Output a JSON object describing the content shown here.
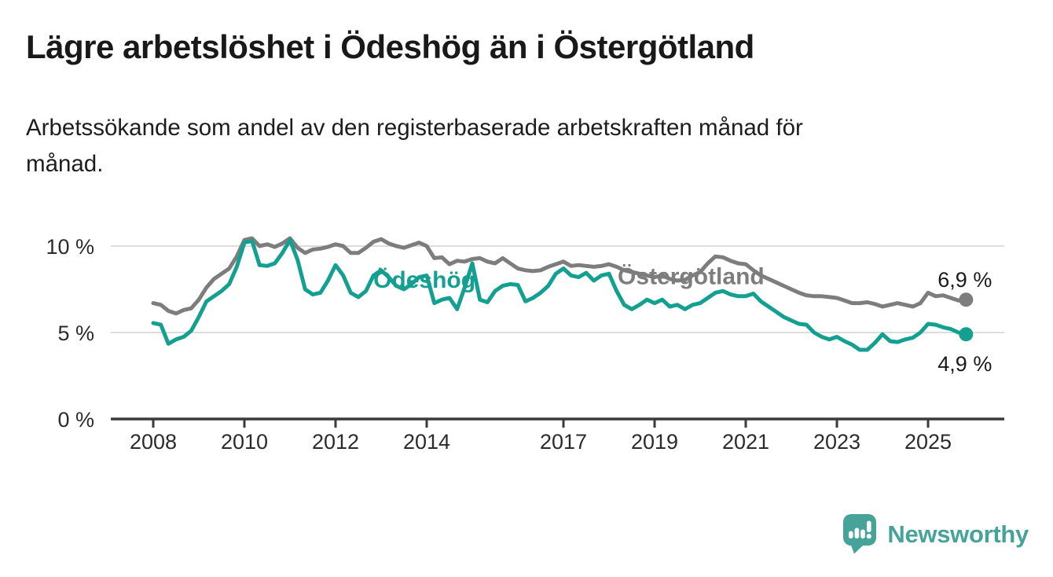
{
  "header": {
    "title": "Lägre arbetslöshet i Ödeshög än i Östergötland",
    "subtitle_line1": "Arbetssökande som andel av den registerbaserade arbetskraften månad för",
    "subtitle_line2": "månad."
  },
  "chart_data": {
    "type": "line",
    "title": "Lägre arbetslöshet i Ödeshög än i Östergötland",
    "subtitle": "Arbetssökande som andel av den registerbaserade arbetskraften månad för månad.",
    "x_unit": "year (monthly data, sampled every 2 months: Jan, Mar, May, Jul, Sep, Nov)",
    "x_range": [
      2008.0,
      2025.83
    ],
    "ylim": [
      0,
      11.6
    ],
    "grid": "horizontal",
    "legend_position": "labels-on-lines",
    "y_axis": {
      "values": [
        0,
        5,
        10
      ],
      "labels": [
        "0 %",
        "5 %",
        "10 %"
      ]
    },
    "x_ticks": [
      2008,
      2010,
      2012,
      2014,
      2017,
      2019,
      2021,
      2023,
      2025
    ],
    "series": [
      {
        "id": "odeshog",
        "name": "Ödeshög",
        "color": "#14a091",
        "end_label": "4,9 %",
        "end_label_side": "below",
        "label_year": 2013.95,
        "label_pct": 8.05,
        "values": [
          5.55,
          5.45,
          4.35,
          4.6,
          4.75,
          5.1,
          5.9,
          6.8,
          7.1,
          7.4,
          7.8,
          8.8,
          10.2,
          10.3,
          8.9,
          8.85,
          9.0,
          9.6,
          10.35,
          9.2,
          7.5,
          7.2,
          7.3,
          8.0,
          8.9,
          8.3,
          7.3,
          7.05,
          7.4,
          8.3,
          8.6,
          8.2,
          7.7,
          7.5,
          7.8,
          8.2,
          8.3,
          6.7,
          6.9,
          7.0,
          6.35,
          7.6,
          9.0,
          6.9,
          6.75,
          7.4,
          7.7,
          7.8,
          7.75,
          6.8,
          7.0,
          7.3,
          7.7,
          8.4,
          8.7,
          8.3,
          8.2,
          8.45,
          8.0,
          8.3,
          8.4,
          7.4,
          6.6,
          6.35,
          6.6,
          6.9,
          6.7,
          6.9,
          6.5,
          6.6,
          6.35,
          6.6,
          6.7,
          7.0,
          7.3,
          7.4,
          7.2,
          7.1,
          7.1,
          7.25,
          6.8,
          6.5,
          6.2,
          5.9,
          5.7,
          5.5,
          5.45,
          5.0,
          4.75,
          4.6,
          4.75,
          4.5,
          4.3,
          4.0,
          4.0,
          4.4,
          4.9,
          4.5,
          4.45,
          4.6,
          4.7,
          5.0,
          5.5,
          5.45,
          5.3,
          5.2,
          5.0,
          4.9
        ]
      },
      {
        "id": "ostergotland",
        "name": "Östergötland",
        "color": "#7d7d7d",
        "end_label": "6,9 %",
        "end_label_side": "above",
        "label_year": 2019.8,
        "label_pct": 8.25,
        "values": [
          6.7,
          6.6,
          6.25,
          6.1,
          6.3,
          6.4,
          6.9,
          7.6,
          8.1,
          8.4,
          8.7,
          9.4,
          10.35,
          10.45,
          10.0,
          10.1,
          9.95,
          10.15,
          10.45,
          9.9,
          9.6,
          9.8,
          9.85,
          9.95,
          10.1,
          10.0,
          9.6,
          9.6,
          9.9,
          10.25,
          10.4,
          10.15,
          10.0,
          9.9,
          10.05,
          10.2,
          10.0,
          9.3,
          9.35,
          8.95,
          9.15,
          9.1,
          9.25,
          9.3,
          9.1,
          9.0,
          9.3,
          9.0,
          8.7,
          8.6,
          8.55,
          8.6,
          8.8,
          8.95,
          9.1,
          8.85,
          8.9,
          8.85,
          8.8,
          8.85,
          8.95,
          8.8,
          8.6,
          8.5,
          8.4,
          8.3,
          8.2,
          8.3,
          8.1,
          8.0,
          8.05,
          8.3,
          8.5,
          9.0,
          9.4,
          9.35,
          9.15,
          9.0,
          8.95,
          8.6,
          8.3,
          8.1,
          7.9,
          7.7,
          7.5,
          7.3,
          7.15,
          7.1,
          7.1,
          7.05,
          7.0,
          6.85,
          6.7,
          6.7,
          6.75,
          6.65,
          6.5,
          6.6,
          6.7,
          6.6,
          6.5,
          6.7,
          7.3,
          7.1,
          7.15,
          7.0,
          6.85,
          6.9
        ]
      }
    ],
    "colors": {
      "grid": "#dcdcdc",
      "axis": "#3b3b3b",
      "tick_text": "#2b2b2b",
      "value_text": "#1a1a1a"
    }
  },
  "footer": {
    "brand": "Newsworthy",
    "logo_color": "#46a39a"
  }
}
